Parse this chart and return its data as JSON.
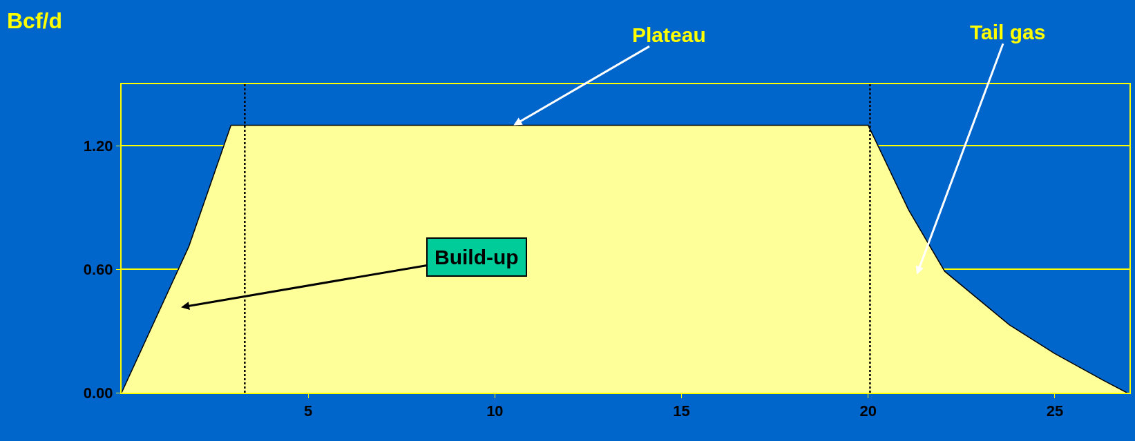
{
  "chart_data": {
    "type": "area",
    "ylabel": "Bcf/d",
    "x": [
      0,
      1.8,
      2.93,
      20.0,
      21.08,
      22.05,
      23.78,
      25.0,
      26.3,
      26.93
    ],
    "series": [
      {
        "color": "#ffff99",
        "values": [
          0,
          0.71,
          1.3,
          1.3,
          0.89,
          0.59,
          0.33,
          0.19,
          0.06,
          0
        ]
      }
    ],
    "xlim": [
      0,
      27
    ],
    "ylim": [
      0,
      1.5
    ],
    "xticks": [
      5,
      10,
      15,
      20,
      25
    ],
    "yticks": [
      {
        "value": 0,
        "label": "0.00"
      },
      {
        "value": 0.6,
        "label": "0.60"
      },
      {
        "value": 1.2,
        "label": "1.20"
      }
    ],
    "grid": "y",
    "ref_lines": [
      {
        "axis": "x",
        "value": 3.3,
        "line_style": "dotted",
        "color": "#000000"
      },
      {
        "axis": "x",
        "value": 20.05,
        "line_style": "dotted",
        "color": "#000000"
      }
    ],
    "annotations": [
      {
        "text": "Plateau",
        "x": 10.5,
        "y": 1.3
      },
      "Tail gas",
      "Build-up"
    ]
  }
}
